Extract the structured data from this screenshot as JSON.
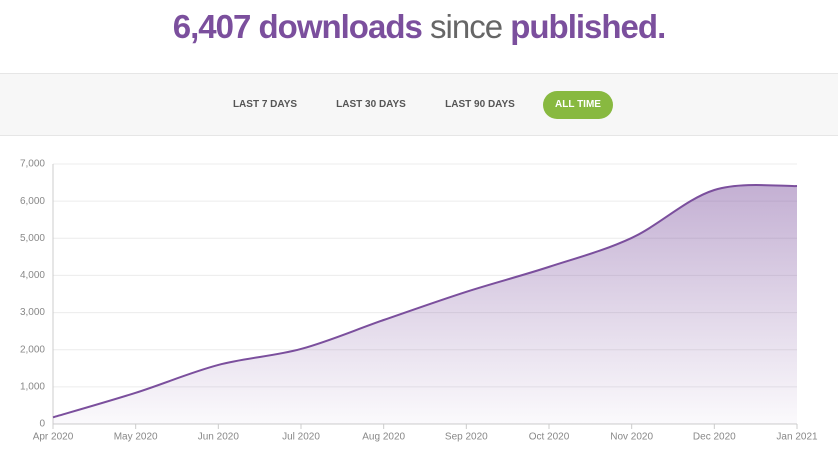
{
  "header": {
    "parts": [
      "6,407 downloads",
      "since",
      "published."
    ]
  },
  "tabs": [
    {
      "label": "LAST 7 DAYS"
    },
    {
      "label": "LAST 30 DAYS"
    },
    {
      "label": "LAST 90 DAYS"
    },
    {
      "label": "ALL TIME",
      "active": true
    }
  ],
  "chart_data": {
    "type": "area",
    "categories": [
      "Apr 2020",
      "May 2020",
      "Jun 2020",
      "Jul 2020",
      "Aug 2020",
      "Sep 2020",
      "Oct 2020",
      "Nov 2020",
      "Dec 2020",
      "Jan 2021"
    ],
    "series": [
      {
        "name": "Downloads",
        "color": "#7b4f9d",
        "values": [
          180,
          840,
          1590,
          2020,
          2800,
          3560,
          4230,
          5010,
          6300,
          6407
        ]
      }
    ],
    "ylim": [
      0,
      7000
    ],
    "yticks": [
      0,
      {
        "value": 1000,
        "label": "1,000"
      },
      {
        "value": 2000,
        "label": "2,000"
      },
      {
        "value": 3000,
        "label": "3,000"
      },
      {
        "value": 4000,
        "label": "4,000"
      },
      {
        "value": 5000,
        "label": "5,000"
      },
      {
        "value": 6000,
        "label": "6,000"
      },
      {
        "value": 7000,
        "label": "7,000"
      }
    ],
    "grid": true
  }
}
